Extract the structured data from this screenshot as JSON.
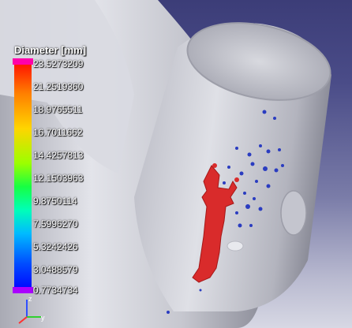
{
  "legend": {
    "title": "Diameter [mm]",
    "ticks": [
      "23.5273209",
      "21.2519360",
      "18.9765511",
      "16.7011662",
      "14.4257813",
      "12.1503963",
      "9.8750114",
      "7.5996270",
      "5.3242426",
      "3.0488579",
      "0.7734734"
    ]
  },
  "axes_triad": {
    "z_label": "z",
    "y_label": "y"
  },
  "colors": {
    "background_top": "#3c3d78",
    "background_bottom": "#d7d8e4",
    "part_surface": "#cfd0d8",
    "defect_large": "#d92b2b",
    "defect_small": "#2a3cc0",
    "axis_x": "#ff3030",
    "axis_y": "#30d030",
    "axis_z": "#3050ff"
  }
}
